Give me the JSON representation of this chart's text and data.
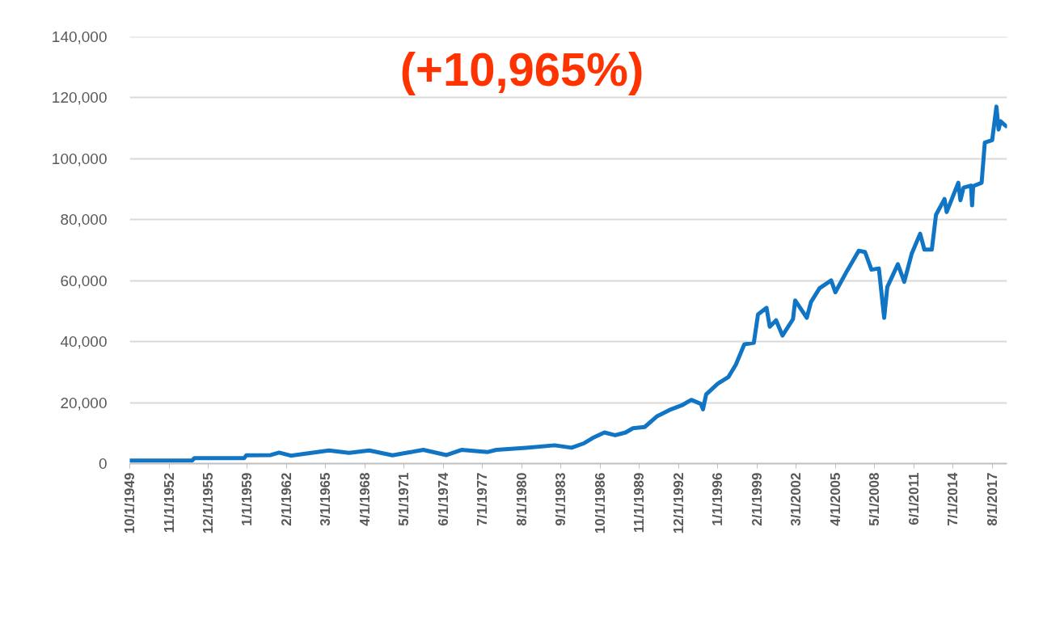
{
  "chart_data": {
    "type": "line",
    "title": "(+10,965%)",
    "x": [
      "1949-10",
      "1954-09",
      "1954-11",
      "1958-10",
      "1958-12",
      "1960-11",
      "1961-07",
      "1962-06",
      "1963-05",
      "1965-06",
      "1967-01",
      "1968-08",
      "1970-06",
      "1971-10",
      "1972-11",
      "1974-09",
      "1975-11",
      "1977-12",
      "1978-08",
      "1980-12",
      "1983-03",
      "1984-07",
      "1985-07",
      "1986-03",
      "1987-02",
      "1987-12",
      "1988-10",
      "1989-05",
      "1990-04",
      "1991-04",
      "1992-05",
      "1993-03",
      "1993-12",
      "1994-09",
      "1994-11",
      "1995-02",
      "1996-01",
      "1996-11",
      "1997-06",
      "1998-02",
      "1998-11",
      "1999-03",
      "1999-11",
      "2000-02",
      "2000-08",
      "2001-02",
      "2001-12",
      "2002-02",
      "2003-01",
      "2003-05",
      "2004-01",
      "2004-12",
      "2005-04",
      "2006-03",
      "2007-02",
      "2007-08",
      "2008-02",
      "2008-09",
      "2009-02",
      "2009-05",
      "2010-03",
      "2010-09",
      "2011-04",
      "2011-12",
      "2012-04",
      "2012-11",
      "2013-03",
      "2013-11",
      "2014-01",
      "2014-12",
      "2015-02",
      "2015-05",
      "2015-12",
      "2016-01",
      "2016-02",
      "2016-10",
      "2017-01",
      "2017-08",
      "2017-12",
      "2018-02",
      "2018-04",
      "2018-09"
    ],
    "series": [
      {
        "color": "#0f75c4",
        "values": [
          1000,
          1000,
          1800,
          1800,
          2700,
          2800,
          3600,
          2600,
          3100,
          4300,
          3500,
          4300,
          2700,
          3700,
          4500,
          2800,
          4500,
          3800,
          4500,
          5200,
          6000,
          5200,
          6700,
          8400,
          10200,
          9300,
          10200,
          11600,
          12000,
          15600,
          17800,
          19100,
          20900,
          19600,
          17800,
          22700,
          26200,
          28400,
          32400,
          39100,
          39600,
          48900,
          51100,
          44900,
          47000,
          42000,
          47400,
          53500,
          47800,
          53000,
          57500,
          60100,
          56200,
          63200,
          69800,
          69400,
          63600,
          64000,
          47800,
          57900,
          65400,
          59600,
          68800,
          75400,
          70200,
          70200,
          81600,
          86800,
          82500,
          92100,
          86400,
          90500,
          91200,
          84700,
          91000,
          92100,
          105300,
          106100,
          117100,
          109600,
          112300,
          110700
        ]
      }
    ],
    "xlim": [
      "1949-10",
      "2018-10"
    ],
    "xticks": [
      {
        "value": "1949-10",
        "label": "10/1/1949"
      },
      {
        "value": "1952-11",
        "label": "11/1/1952"
      },
      {
        "value": "1955-12",
        "label": "12/1/1955"
      },
      {
        "value": "1959-01",
        "label": "1/1/1959"
      },
      {
        "value": "1962-02",
        "label": "2/1/1962"
      },
      {
        "value": "1965-03",
        "label": "3/1/1965"
      },
      {
        "value": "1968-04",
        "label": "4/1/1968"
      },
      {
        "value": "1971-05",
        "label": "5/1/1971"
      },
      {
        "value": "1974-06",
        "label": "6/1/1974"
      },
      {
        "value": "1977-07",
        "label": "7/1/1977"
      },
      {
        "value": "1980-08",
        "label": "8/1/1980"
      },
      {
        "value": "1983-09",
        "label": "9/1/1983"
      },
      {
        "value": "1986-10",
        "label": "10/1/1986"
      },
      {
        "value": "1989-11",
        "label": "11/1/1989"
      },
      {
        "value": "1992-12",
        "label": "12/1/1992"
      },
      {
        "value": "1996-01",
        "label": "1/1/1996"
      },
      {
        "value": "1999-02",
        "label": "2/1/1999"
      },
      {
        "value": "2002-03",
        "label": "3/1/2002"
      },
      {
        "value": "2005-04",
        "label": "4/1/2005"
      },
      {
        "value": "2008-05",
        "label": "5/1/2008"
      },
      {
        "value": "2011-06",
        "label": "6/1/2011"
      },
      {
        "value": "2014-07",
        "label": "7/1/2014"
      },
      {
        "value": "2017-08",
        "label": "8/1/2017"
      }
    ],
    "ylim": [
      0,
      140000
    ],
    "yticks": [
      {
        "value": 0,
        "label": "0"
      },
      {
        "value": 20000,
        "label": "20,000"
      },
      {
        "value": 40000,
        "label": "40,000"
      },
      {
        "value": 60000,
        "label": "60,000"
      },
      {
        "value": 80000,
        "label": "80,000"
      },
      {
        "value": 100000,
        "label": "100,000"
      },
      {
        "value": 120000,
        "label": "120,000"
      },
      {
        "value": 140000,
        "label": "140,000"
      }
    ],
    "grid": "y"
  }
}
